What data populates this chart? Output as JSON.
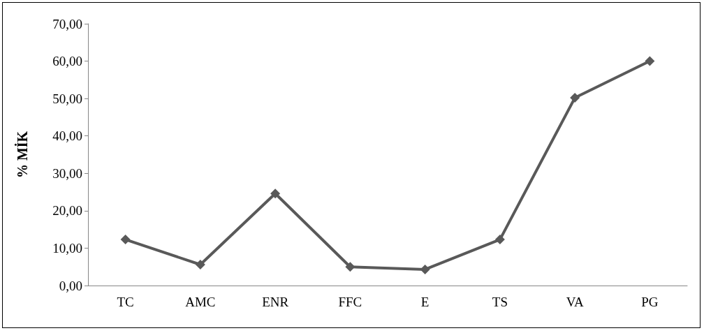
{
  "chart_data": {
    "type": "line",
    "ylabel": "% MİK",
    "categories": [
      "TC",
      "AMC",
      "ENR",
      "FFC",
      "E",
      "TS",
      "VA",
      "PG"
    ],
    "series": [
      {
        "color": "#595959",
        "values": [
          12.3,
          5.6,
          24.6,
          5.0,
          4.3,
          12.3,
          50.2,
          60.0
        ]
      }
    ],
    "ylim": [
      0,
      70
    ],
    "yticks": [
      {
        "value": 0,
        "label": "0,00"
      },
      {
        "value": 10,
        "label": "10,00"
      },
      {
        "value": 20,
        "label": "20,00"
      },
      {
        "value": 30,
        "label": "30,00"
      },
      {
        "value": 40,
        "label": "40,00"
      },
      {
        "value": 50,
        "label": "50,00"
      },
      {
        "value": 60,
        "label": "60,00"
      },
      {
        "value": 70,
        "label": "70,00"
      }
    ],
    "grid": false,
    "marker": "diamond",
    "line_style": "solid"
  }
}
